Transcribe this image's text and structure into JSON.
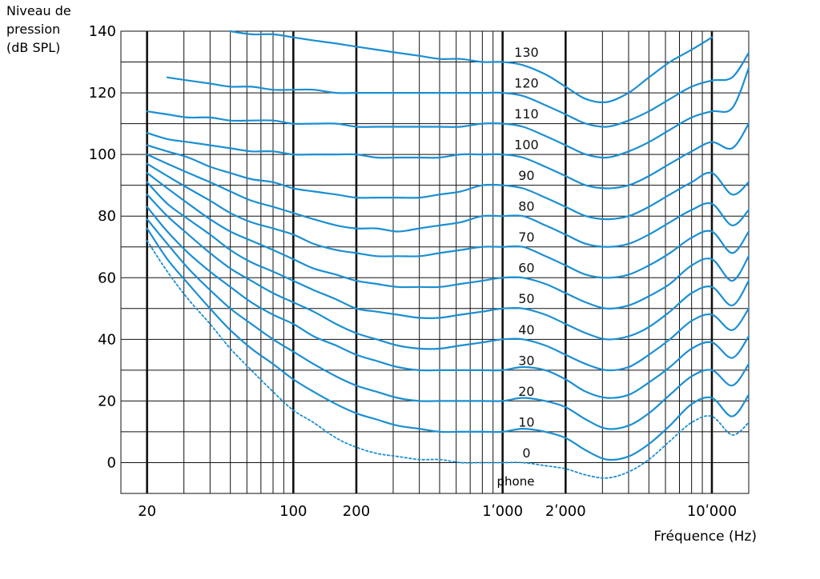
{
  "chart_data": {
    "type": "line",
    "ylabel_lines": [
      "Niveau de",
      "pression",
      "(dB SPL)"
    ],
    "xlabel": "Fréquence (Hz)",
    "x_scale": "log",
    "xlim": [
      15,
      15000
    ],
    "ylim": [
      -10,
      140
    ],
    "x_ticks": [
      {
        "value": 20,
        "label": "20"
      },
      {
        "value": 100,
        "label": "100"
      },
      {
        "value": 200,
        "label": "200"
      },
      {
        "value": 1000,
        "label": "1ʹ000"
      },
      {
        "value": 2000,
        "label": "2ʹ000"
      },
      {
        "value": 10000,
        "label": "10ʹ000"
      }
    ],
    "y_ticks": [
      0,
      20,
      40,
      60,
      80,
      100,
      120,
      140
    ],
    "unit_label": "phone",
    "grid": true,
    "line_color": "#1b8fd2",
    "series": [
      {
        "name": "0",
        "dashed": true,
        "x": [
          20,
          25,
          31.5,
          40,
          50,
          63,
          80,
          100,
          125,
          160,
          200,
          250,
          315,
          400,
          500,
          630,
          800,
          1000,
          1250,
          1600,
          2000,
          2500,
          3150,
          4000,
          5000,
          6300,
          8000,
          10000,
          12500,
          15000
        ],
        "y": [
          72,
          62,
          53,
          45,
          37,
          30,
          23,
          17,
          13,
          8,
          5,
          3,
          2,
          1,
          1,
          0,
          0,
          0,
          0,
          -1,
          -2,
          -4,
          -5,
          -3,
          1,
          7,
          13,
          15,
          9,
          13
        ]
      },
      {
        "name": "10",
        "dashed": false,
        "x": [
          20,
          25,
          31.5,
          40,
          50,
          63,
          80,
          100,
          125,
          160,
          200,
          250,
          315,
          400,
          500,
          630,
          800,
          1000,
          1250,
          1600,
          2000,
          2500,
          3150,
          4000,
          5000,
          6300,
          8000,
          10000,
          12500,
          15000
        ],
        "y": [
          76,
          66,
          58,
          50,
          43,
          37,
          32,
          27,
          23,
          19,
          16,
          14,
          12,
          11,
          10,
          10,
          10,
          10,
          11,
          10,
          8,
          4,
          1,
          2,
          6,
          12,
          19,
          21,
          15,
          22
        ]
      },
      {
        "name": "20",
        "dashed": false,
        "x": [
          20,
          25,
          31.5,
          40,
          50,
          63,
          80,
          100,
          125,
          160,
          200,
          250,
          315,
          400,
          500,
          630,
          800,
          1000,
          1250,
          1600,
          2000,
          2500,
          3150,
          4000,
          5000,
          6300,
          8000,
          10000,
          12500,
          15000
        ],
        "y": [
          79,
          71,
          63,
          56,
          50,
          45,
          40,
          36,
          32,
          28,
          25,
          23,
          21,
          20,
          20,
          20,
          20,
          20,
          21,
          20,
          18,
          14,
          11,
          12,
          16,
          22,
          28,
          30,
          25,
          32
        ]
      },
      {
        "name": "30",
        "dashed": false,
        "x": [
          20,
          25,
          31.5,
          40,
          50,
          63,
          80,
          100,
          125,
          160,
          200,
          250,
          315,
          400,
          500,
          630,
          800,
          1000,
          1250,
          1600,
          2000,
          2500,
          3150,
          4000,
          5000,
          6300,
          8000,
          10000,
          12500,
          15000
        ],
        "y": [
          83,
          75,
          68,
          62,
          57,
          52,
          48,
          45,
          41,
          38,
          35,
          33,
          31,
          30,
          30,
          30,
          30,
          30,
          31,
          30,
          27,
          23,
          21,
          22,
          26,
          31,
          37,
          39,
          34,
          41
        ]
      },
      {
        "name": "40",
        "dashed": false,
        "x": [
          20,
          25,
          31.5,
          40,
          50,
          63,
          80,
          100,
          125,
          160,
          200,
          250,
          315,
          400,
          500,
          630,
          800,
          1000,
          1250,
          1600,
          2000,
          2500,
          3150,
          4000,
          5000,
          6300,
          8000,
          10000,
          12500,
          15000
        ],
        "y": [
          87,
          80,
          74,
          68,
          63,
          59,
          55,
          52,
          49,
          45,
          42,
          40,
          38,
          37,
          37,
          38,
          39,
          40,
          40,
          38,
          35,
          32,
          30,
          31,
          35,
          40,
          46,
          48,
          43,
          50
        ]
      },
      {
        "name": "50",
        "dashed": false,
        "x": [
          20,
          25,
          31.5,
          40,
          50,
          63,
          80,
          100,
          125,
          160,
          200,
          250,
          315,
          400,
          500,
          630,
          800,
          1000,
          1250,
          1600,
          2000,
          2500,
          3150,
          4000,
          5000,
          6300,
          8000,
          10000,
          12500,
          15000
        ],
        "y": [
          91,
          84,
          79,
          74,
          69,
          65,
          62,
          59,
          56,
          53,
          50,
          49,
          48,
          47,
          47,
          48,
          49,
          50,
          50,
          48,
          45,
          42,
          40,
          41,
          44,
          49,
          55,
          57,
          51,
          59
        ]
      },
      {
        "name": "60",
        "dashed": false,
        "x": [
          20,
          25,
          31.5,
          40,
          50,
          63,
          80,
          100,
          125,
          160,
          200,
          250,
          315,
          400,
          500,
          630,
          800,
          1000,
          1250,
          1600,
          2000,
          2500,
          3150,
          4000,
          5000,
          6300,
          8000,
          10000,
          12500,
          15000
        ],
        "y": [
          94,
          89,
          84,
          79,
          75,
          72,
          69,
          66,
          63,
          61,
          59,
          58,
          57,
          57,
          57,
          58,
          59,
          60,
          60,
          58,
          55,
          52,
          50,
          51,
          54,
          58,
          64,
          66,
          59,
          67
        ]
      },
      {
        "name": "70",
        "dashed": false,
        "x": [
          20,
          25,
          31.5,
          40,
          50,
          63,
          80,
          100,
          125,
          160,
          200,
          250,
          315,
          400,
          500,
          630,
          800,
          1000,
          1250,
          1600,
          2000,
          2500,
          3150,
          4000,
          5000,
          6300,
          8000,
          10000,
          12500,
          15000
        ],
        "y": [
          97,
          93,
          89,
          85,
          81,
          78,
          76,
          74,
          71,
          69,
          68,
          67,
          67,
          67,
          68,
          69,
          70,
          70,
          70,
          67,
          64,
          61,
          60,
          61,
          64,
          68,
          73,
          75,
          68,
          75
        ]
      },
      {
        "name": "80",
        "dashed": false,
        "x": [
          20,
          25,
          31.5,
          40,
          50,
          63,
          80,
          100,
          125,
          160,
          200,
          250,
          315,
          400,
          500,
          630,
          800,
          1000,
          1250,
          1600,
          2000,
          2500,
          3150,
          4000,
          5000,
          6300,
          8000,
          10000,
          12500,
          15000
        ],
        "y": [
          100,
          97,
          94,
          91,
          88,
          85,
          83,
          81,
          79,
          77,
          76,
          76,
          75,
          76,
          77,
          78,
          80,
          80,
          80,
          77,
          74,
          71,
          70,
          71,
          74,
          78,
          82,
          84,
          77,
          82
        ]
      },
      {
        "name": "90",
        "dashed": false,
        "x": [
          20,
          25,
          31.5,
          40,
          50,
          63,
          80,
          100,
          125,
          160,
          200,
          250,
          315,
          400,
          500,
          630,
          800,
          1000,
          1250,
          1600,
          2000,
          2500,
          3150,
          4000,
          5000,
          6300,
          8000,
          10000,
          12500,
          15000
        ],
        "y": [
          103,
          101,
          99,
          96,
          94,
          92,
          91,
          89,
          88,
          87,
          86,
          86,
          86,
          86,
          87,
          88,
          90,
          90,
          89,
          86,
          83,
          80,
          79,
          80,
          83,
          87,
          91,
          94,
          87,
          91
        ]
      },
      {
        "name": "100",
        "dashed": false,
        "x": [
          20,
          25,
          31.5,
          40,
          50,
          63,
          80,
          100,
          125,
          160,
          200,
          250,
          315,
          400,
          500,
          630,
          800,
          1000,
          1250,
          1600,
          2000,
          2500,
          3150,
          4000,
          5000,
          6300,
          8000,
          10000,
          12500,
          15000
        ],
        "y": [
          107,
          105,
          104,
          103,
          102,
          101,
          101,
          100,
          100,
          100,
          100,
          99,
          99,
          99,
          99,
          100,
          100,
          100,
          99,
          96,
          93,
          90,
          89,
          90,
          93,
          97,
          101,
          104,
          102,
          110
        ]
      },
      {
        "name": "110",
        "dashed": false,
        "x": [
          20,
          25,
          31.5,
          40,
          50,
          63,
          80,
          100,
          125,
          160,
          200,
          250,
          315,
          400,
          500,
          630,
          800,
          1000,
          1250,
          1600,
          2000,
          2500,
          3150,
          4000,
          5000,
          6300,
          8000,
          10000,
          12500,
          15000
        ],
        "y": [
          114,
          113,
          112,
          112,
          111,
          111,
          111,
          110,
          110,
          110,
          109,
          109,
          109,
          109,
          109,
          109,
          110,
          110,
          109,
          106,
          103,
          100,
          99,
          101,
          104,
          108,
          112,
          114,
          115,
          128
        ]
      },
      {
        "name": "120",
        "dashed": false,
        "x": [
          25,
          31.5,
          40,
          50,
          63,
          80,
          100,
          125,
          160,
          200,
          250,
          315,
          400,
          500,
          630,
          800,
          1000,
          1250,
          1600,
          2000,
          2500,
          3150,
          4000,
          5000,
          6300,
          8000,
          10000,
          12500,
          15000
        ],
        "y": [
          125,
          124,
          123,
          122,
          122,
          121,
          121,
          121,
          120,
          120,
          120,
          120,
          120,
          120,
          120,
          120,
          120,
          119,
          116,
          113,
          110,
          109,
          111,
          114,
          118,
          122,
          124,
          125,
          133
        ]
      },
      {
        "name": "130",
        "dashed": false,
        "x": [
          50,
          63,
          80,
          100,
          125,
          160,
          200,
          250,
          315,
          400,
          500,
          630,
          800,
          1000,
          1250,
          1600,
          2000,
          2500,
          3150,
          4000,
          5000,
          6300,
          8000,
          10000
        ],
        "y": [
          140,
          139,
          139,
          138,
          137,
          136,
          135,
          134,
          133,
          132,
          131,
          131,
          130,
          130,
          129,
          126,
          122,
          118,
          117,
          120,
          125,
          130,
          134,
          138
        ]
      }
    ],
    "label_positions": [
      {
        "text": "0",
        "x": 1300,
        "y": 3
      },
      {
        "text": "10",
        "x": 1300,
        "y": 13
      },
      {
        "text": "20",
        "x": 1300,
        "y": 23
      },
      {
        "text": "30",
        "x": 1300,
        "y": 33
      },
      {
        "text": "40",
        "x": 1300,
        "y": 43
      },
      {
        "text": "50",
        "x": 1300,
        "y": 53
      },
      {
        "text": "60",
        "x": 1300,
        "y": 63
      },
      {
        "text": "70",
        "x": 1300,
        "y": 73
      },
      {
        "text": "80",
        "x": 1300,
        "y": 83
      },
      {
        "text": "90",
        "x": 1300,
        "y": 93
      },
      {
        "text": "100",
        "x": 1300,
        "y": 103
      },
      {
        "text": "110",
        "x": 1300,
        "y": 113
      },
      {
        "text": "120",
        "x": 1300,
        "y": 123
      },
      {
        "text": "130",
        "x": 1300,
        "y": 133
      }
    ]
  }
}
